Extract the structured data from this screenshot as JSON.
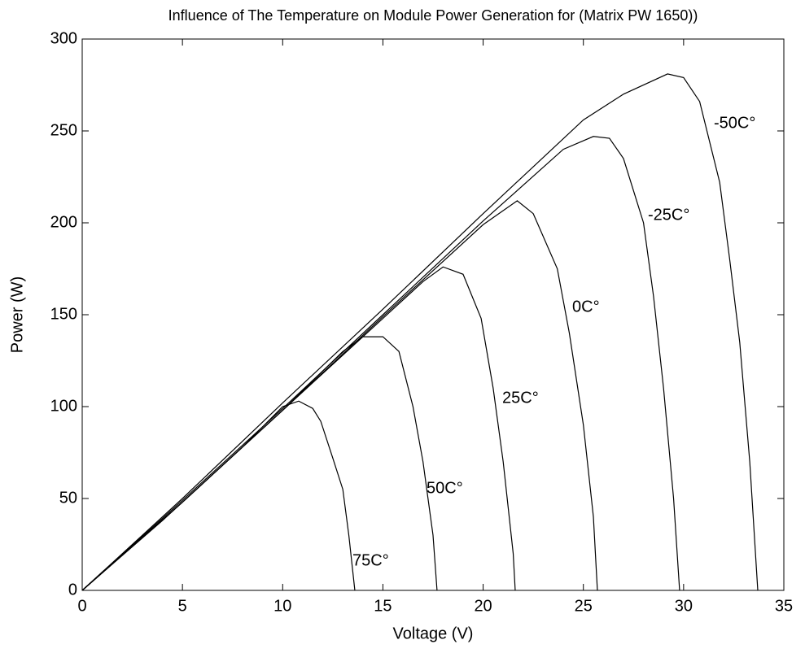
{
  "chart_data": {
    "type": "line",
    "title": "Influence of The Temperature on Module Power Generation for (Matrix PW 1650))",
    "x_label": "Voltage (V)",
    "y_label": "Power (W)",
    "xlim": [
      0,
      35
    ],
    "ylim": [
      0,
      300
    ],
    "xticks": [
      0,
      5,
      10,
      15,
      20,
      25,
      30,
      35
    ],
    "yticks": [
      0,
      50,
      100,
      150,
      200,
      250,
      300
    ],
    "grid": false,
    "series": [
      {
        "name": "75C°",
        "color": "#000000",
        "x": [
          0,
          2,
          4,
          6,
          8,
          10,
          10.8,
          11.5,
          11.9,
          12.5,
          13,
          13.3,
          13.6
        ],
        "values": [
          0,
          19,
          38,
          58,
          78,
          100,
          103,
          99,
          92,
          72,
          55,
          30,
          0
        ]
      },
      {
        "name": "50C°",
        "color": "#000000",
        "x": [
          0,
          5,
          10,
          13,
          14,
          15,
          15.8,
          16.5,
          17,
          17.5,
          17.7
        ],
        "values": [
          0,
          48,
          98,
          130,
          138,
          138,
          130,
          100,
          70,
          30,
          0
        ]
      },
      {
        "name": "25C°",
        "color": "#000000",
        "x": [
          0,
          5,
          10,
          15,
          17,
          18,
          19,
          19.9,
          20.5,
          21,
          21.5,
          21.6
        ],
        "values": [
          0,
          48,
          98,
          148,
          168,
          176,
          172,
          148,
          110,
          70,
          20,
          0
        ]
      },
      {
        "name": "0C°",
        "color": "#000000",
        "x": [
          0,
          5,
          10,
          15,
          20,
          21.7,
          22.5,
          23.7,
          24.3,
          25,
          25.5,
          25.7
        ],
        "values": [
          0,
          48,
          98,
          149,
          199,
          212,
          205,
          175,
          140,
          90,
          40,
          0
        ]
      },
      {
        "name": "-25C°",
        "color": "#000000",
        "x": [
          0,
          5,
          10,
          15,
          20,
          24,
          25.5,
          26.3,
          27,
          28,
          28.5,
          29,
          29.5,
          29.8
        ],
        "values": [
          0,
          49,
          99,
          150,
          201,
          240,
          247,
          246,
          235,
          200,
          160,
          110,
          50,
          0
        ]
      },
      {
        "name": "-50C°",
        "color": "#000000",
        "x": [
          0,
          5,
          10,
          15,
          20,
          25,
          27,
          29.2,
          30,
          30.8,
          31.8,
          32.3,
          32.8,
          33.3,
          33.7
        ],
        "values": [
          0,
          50,
          102,
          153,
          205,
          256,
          270,
          281,
          279,
          266,
          222,
          180,
          135,
          70,
          0
        ]
      }
    ]
  }
}
